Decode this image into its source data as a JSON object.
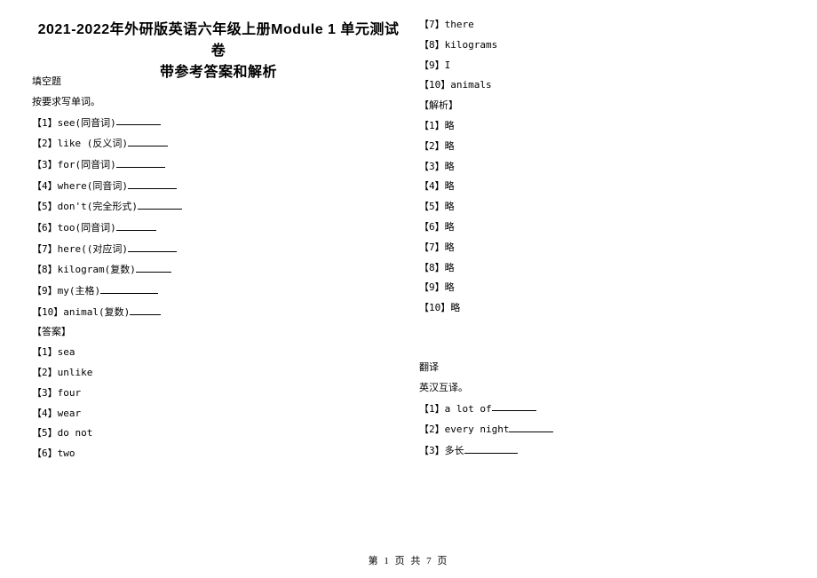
{
  "header": {
    "title_line1": "2021-2022年外研版英语六年级上册Module 1 单元测试卷",
    "title_line2": "带参考答案和解析"
  },
  "left": {
    "section_label": "填空题",
    "instruction": "按要求写单词。",
    "items": [
      {
        "n": "【1】",
        "text": "see(同音词)",
        "blank": 50
      },
      {
        "n": "【2】",
        "text": "like (反义词)",
        "blank": 45
      },
      {
        "n": "【3】",
        "text": "for(同音词)",
        "blank": 55
      },
      {
        "n": "【4】",
        "text": "where(同音词)",
        "blank": 55
      },
      {
        "n": "【5】",
        "text": "don't(完全形式)",
        "blank": 50
      },
      {
        "n": "【6】",
        "text": "too(同音词)",
        "blank": 45
      },
      {
        "n": "【7】",
        "text": "here((对应词)",
        "blank": 55
      },
      {
        "n": "【8】",
        "text": "kilogram(复数)",
        "blank": 40
      },
      {
        "n": "【9】",
        "text": "my(主格)",
        "blank": 65
      },
      {
        "n": "【10】",
        "text": "animal(复数)",
        "blank": 35
      }
    ],
    "answer_label": "【答案】",
    "answers": [
      {
        "n": "【1】",
        "text": "sea"
      },
      {
        "n": "【2】",
        "text": "unlike"
      },
      {
        "n": "【3】",
        "text": "four"
      },
      {
        "n": "【4】",
        "text": "wear"
      },
      {
        "n": "【5】",
        "text": "do not"
      },
      {
        "n": "【6】",
        "text": "two"
      }
    ]
  },
  "right": {
    "answers_cont": [
      {
        "n": "【7】",
        "text": "there"
      },
      {
        "n": "【8】",
        "text": "kilograms"
      },
      {
        "n": "【9】",
        "text": "I"
      },
      {
        "n": "【10】",
        "text": "animals"
      }
    ],
    "analysis_label": "【解析】",
    "analysis": [
      {
        "n": "【1】",
        "text": "略"
      },
      {
        "n": "【2】",
        "text": "略"
      },
      {
        "n": "【3】",
        "text": "略"
      },
      {
        "n": "【4】",
        "text": "略"
      },
      {
        "n": "【5】",
        "text": "略"
      },
      {
        "n": "【6】",
        "text": "略"
      },
      {
        "n": "【7】",
        "text": "略"
      },
      {
        "n": "【8】",
        "text": "略"
      },
      {
        "n": "【9】",
        "text": "略"
      },
      {
        "n": "【10】",
        "text": "略"
      }
    ],
    "section2_label": "翻译",
    "section2_instruction": "英汉互译。",
    "section2_items": [
      {
        "n": "【1】",
        "text": "a lot of",
        "blank": 50
      },
      {
        "n": "【2】",
        "text": "every night",
        "blank": 50
      },
      {
        "n": "【3】",
        "text": "多长",
        "blank": 60
      }
    ]
  },
  "footer": {
    "text": "第 1 页 共 7 页"
  }
}
